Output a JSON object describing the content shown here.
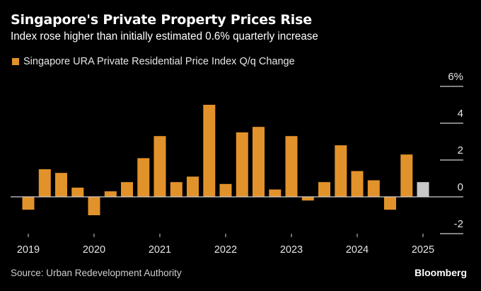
{
  "colors": {
    "background": "#000000",
    "bar": "#e2922a",
    "bar_highlight": "#c8c8c8",
    "axis": "#d0d0d0",
    "text": "#ffffff"
  },
  "chart_data": {
    "type": "bar",
    "title": "Singapore's Private Property Prices Rise",
    "subtitle": "Index rose higher than initially estimated 0.6% quarterly increase",
    "legend": [
      {
        "name": "Singapore URA Private Residential Price Index Q/q Change",
        "color": "#e2922a"
      }
    ],
    "legend_placement": "top-left",
    "categories": [
      "2019Q1",
      "2019Q2",
      "2019Q3",
      "2019Q4",
      "2020Q1",
      "2020Q2",
      "2020Q3",
      "2020Q4",
      "2021Q1",
      "2021Q2",
      "2021Q3",
      "2021Q4",
      "2022Q1",
      "2022Q2",
      "2022Q3",
      "2022Q4",
      "2023Q1",
      "2023Q2",
      "2023Q3",
      "2023Q4",
      "2024Q1",
      "2024Q2",
      "2024Q3",
      "2024Q4",
      "2025Q1"
    ],
    "values": [
      -0.7,
      1.5,
      1.3,
      0.5,
      -1.0,
      0.3,
      0.8,
      2.1,
      3.3,
      0.8,
      1.1,
      5.0,
      0.7,
      3.5,
      3.8,
      0.4,
      3.3,
      -0.2,
      0.8,
      2.8,
      1.4,
      0.9,
      -0.7,
      2.3,
      0.8
    ],
    "highlight_index": 24,
    "x_tick_labels": [
      "2019",
      "2020",
      "2021",
      "2022",
      "2023",
      "2024",
      "2025"
    ],
    "y_ticks": [
      6,
      4,
      2,
      0,
      -2
    ],
    "y_tick_labels": [
      "6%",
      "4",
      "2",
      "0",
      "-2"
    ],
    "ylim": [
      -2.5,
      6.3
    ],
    "xlabel": "",
    "ylabel": "",
    "y_axis_side": "right",
    "grid": false
  },
  "footer": {
    "source": "Source: Urban Redevelopment Authority",
    "brand": "Bloomberg"
  }
}
